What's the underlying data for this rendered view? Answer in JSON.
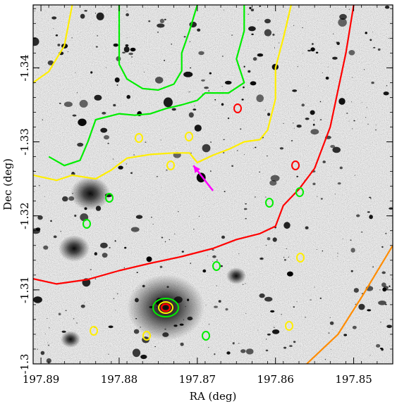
{
  "chart_data": {
    "type": "image",
    "xlabel": "RA (deg)",
    "ylabel": "Dec (deg)",
    "xlim": [
      197.891,
      197.845
    ],
    "ylim": [
      -1.3485,
      -1.3
    ],
    "x_ticks": [
      197.89,
      197.88,
      197.87,
      197.86,
      197.85
    ],
    "x_tick_labels": [
      "197.89",
      "197.88",
      "197.87",
      "197.86",
      "197.85"
    ],
    "y_ticks": [
      -1.3,
      -1.31,
      -1.32,
      -1.33,
      -1.34
    ],
    "y_tick_labels": [
      "-1.3",
      "-1.31",
      "-1.32",
      "-1.33",
      "-1.34"
    ],
    "background": "inverted grayscale astronomical image",
    "contours": [
      {
        "color": "#ff0000",
        "description": "large arc upper-left to lower-right",
        "points": [
          [
            197.891,
            -1.3115
          ],
          [
            197.888,
            -1.3108
          ],
          [
            197.884,
            -1.3114
          ],
          [
            197.88,
            -1.3126
          ],
          [
            197.876,
            -1.3136
          ],
          [
            197.872,
            -1.3145
          ],
          [
            197.868,
            -1.3156
          ],
          [
            197.865,
            -1.3168
          ],
          [
            197.862,
            -1.3176
          ],
          [
            197.86,
            -1.3186
          ],
          [
            197.859,
            -1.3214
          ],
          [
            197.857,
            -1.3236
          ],
          [
            197.855,
            -1.3264
          ],
          [
            197.853,
            -1.332
          ],
          [
            197.852,
            -1.337
          ],
          [
            197.851,
            -1.342
          ],
          [
            197.85,
            -1.3485
          ]
        ]
      },
      {
        "color": "#ff8c00",
        "description": "arc upper-right",
        "points": [
          [
            197.856,
            -1.3
          ],
          [
            197.852,
            -1.304
          ],
          [
            197.849,
            -1.309
          ],
          [
            197.845,
            -1.316
          ]
        ]
      },
      {
        "color": "#ffee00",
        "description": "outer yellow contour",
        "points": [
          [
            197.891,
            -1.3255
          ],
          [
            197.888,
            -1.3248
          ],
          [
            197.886,
            -1.3255
          ],
          [
            197.883,
            -1.325
          ],
          [
            197.881,
            -1.3262
          ],
          [
            197.879,
            -1.3278
          ],
          [
            197.876,
            -1.3283
          ],
          [
            197.873,
            -1.3285
          ],
          [
            197.871,
            -1.3285
          ],
          [
            197.87,
            -1.3272
          ],
          [
            197.868,
            -1.3282
          ],
          [
            197.866,
            -1.329
          ],
          [
            197.864,
            -1.33
          ],
          [
            197.862,
            -1.3303
          ],
          [
            197.861,
            -1.3316
          ],
          [
            197.86,
            -1.3358
          ],
          [
            197.86,
            -1.34
          ],
          [
            197.859,
            -1.344
          ],
          [
            197.858,
            -1.3485
          ]
        ]
      },
      {
        "color": "#ffee00",
        "description": "lower-left yellow contour",
        "points": [
          [
            197.891,
            -1.338
          ],
          [
            197.889,
            -1.3395
          ],
          [
            197.887,
            -1.343
          ],
          [
            197.886,
            -1.3485
          ]
        ]
      },
      {
        "color": "#00ee00",
        "description": "green contour around cluster",
        "points": [
          [
            197.889,
            -1.328
          ],
          [
            197.887,
            -1.3268
          ],
          [
            197.885,
            -1.3275
          ],
          [
            197.884,
            -1.33
          ],
          [
            197.883,
            -1.333
          ],
          [
            197.88,
            -1.3338
          ],
          [
            197.878,
            -1.3336
          ],
          [
            197.876,
            -1.3338
          ],
          [
            197.874,
            -1.3345
          ],
          [
            197.872,
            -1.335
          ],
          [
            197.87,
            -1.3356
          ],
          [
            197.869,
            -1.3366
          ],
          [
            197.866,
            -1.3366
          ],
          [
            197.864,
            -1.338
          ],
          [
            197.865,
            -1.3412
          ],
          [
            197.864,
            -1.345
          ],
          [
            197.864,
            -1.3485
          ]
        ]
      },
      {
        "color": "#00ee00",
        "description": "inner green contour",
        "points": [
          [
            197.88,
            -1.3485
          ],
          [
            197.88,
            -1.344
          ],
          [
            197.88,
            -1.3405
          ],
          [
            197.879,
            -1.3385
          ],
          [
            197.877,
            -1.3372
          ],
          [
            197.875,
            -1.337
          ],
          [
            197.873,
            -1.3378
          ],
          [
            197.872,
            -1.3396
          ],
          [
            197.872,
            -1.342
          ],
          [
            197.871,
            -1.345
          ],
          [
            197.87,
            -1.3485
          ]
        ]
      }
    ],
    "markers": [
      {
        "color": "#ff00ff",
        "type": "arrow",
        "from": [
          197.868,
          -1.3234
        ],
        "to": [
          197.8705,
          -1.3268
        ]
      }
    ]
  }
}
